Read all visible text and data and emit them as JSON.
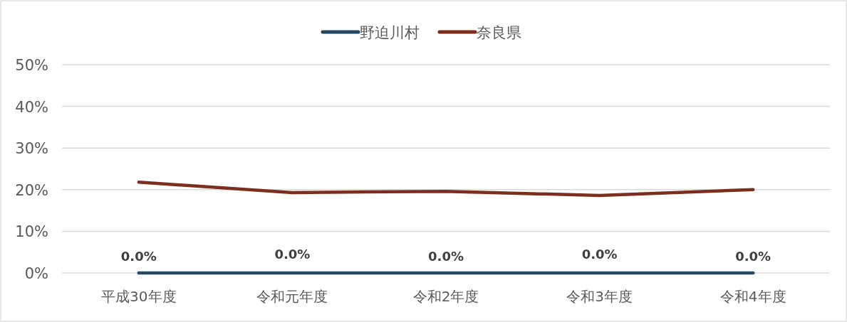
{
  "chart_data": {
    "type": "line",
    "categories": [
      "平成30年度",
      "令和元年度",
      "令和2年度",
      "令和3年度",
      "令和4年度"
    ],
    "series": [
      {
        "name": "野迫川村",
        "color": "#264861",
        "values": [
          0,
          0,
          0,
          0,
          0
        ],
        "value_labels": [
          "0.0%",
          "0.0%",
          "0.0%",
          "0.0%",
          "0.0%"
        ]
      },
      {
        "name": "奈良県",
        "color": "#7b2f1c",
        "values": [
          21.8,
          19.3,
          19.6,
          18.6,
          20.0
        ]
      }
    ],
    "ylim": [
      0,
      50
    ],
    "yticks": [
      {
        "value": 0,
        "label": "0%"
      },
      {
        "value": 10,
        "label": "10%"
      },
      {
        "value": 20,
        "label": "20%"
      },
      {
        "value": 30,
        "label": "30%"
      },
      {
        "value": 40,
        "label": "40%"
      },
      {
        "value": 50,
        "label": "50%"
      }
    ],
    "grid": "y",
    "legend": "top",
    "marker": "none",
    "line_style": "solid"
  }
}
